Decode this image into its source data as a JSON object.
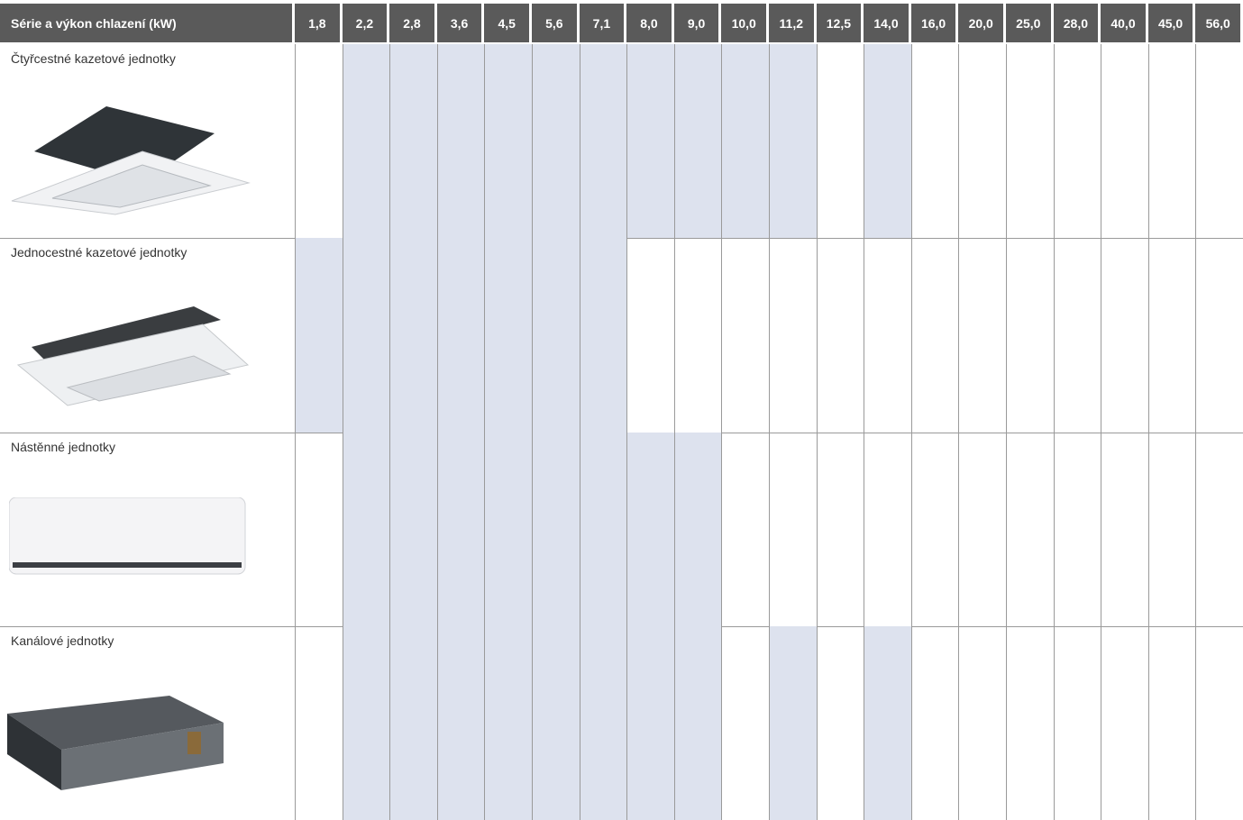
{
  "header": {
    "title": "Série a výkon chlazení (kW)",
    "capacities": [
      "1,8",
      "2,2",
      "2,8",
      "3,6",
      "4,5",
      "5,6",
      "7,1",
      "8,0",
      "9,0",
      "10,0",
      "11,2",
      "12,5",
      "14,0",
      "16,0",
      "20,0",
      "25,0",
      "28,0",
      "40,0",
      "45,0",
      "56,0"
    ]
  },
  "table": {
    "rows": [
      {
        "label": "Čtyřcestné kazetové jednotky",
        "available": [
          false,
          true,
          true,
          true,
          true,
          true,
          true,
          true,
          true,
          true,
          true,
          false,
          true,
          false,
          false,
          false,
          false,
          false,
          false,
          false
        ]
      },
      {
        "label": "Jednocestné kazetové jednotky",
        "available": [
          true,
          true,
          true,
          true,
          true,
          true,
          true,
          false,
          false,
          false,
          false,
          false,
          false,
          false,
          false,
          false,
          false,
          false,
          false,
          false
        ]
      },
      {
        "label": "Nástěnné jednotky",
        "available": [
          false,
          true,
          true,
          true,
          true,
          true,
          true,
          true,
          true,
          false,
          false,
          false,
          false,
          false,
          false,
          false,
          false,
          false,
          false,
          false
        ]
      },
      {
        "label": "Kanálové jednotky",
        "available": [
          false,
          true,
          true,
          true,
          true,
          true,
          true,
          true,
          true,
          false,
          true,
          false,
          true,
          false,
          false,
          false,
          false,
          false,
          false,
          false
        ]
      }
    ]
  }
}
